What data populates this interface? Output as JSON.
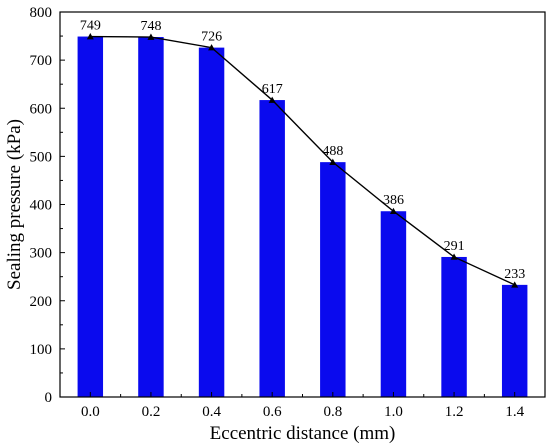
{
  "chart_data": {
    "type": "bar",
    "title": "",
    "xlabel": "Eccentric distance (mm)",
    "ylabel": "Sealing pressure (kPa)",
    "categories": [
      "0.0",
      "0.2",
      "0.4",
      "0.6",
      "0.8",
      "1.0",
      "1.2",
      "1.4"
    ],
    "values": [
      749,
      748,
      726,
      617,
      488,
      386,
      291,
      233
    ],
    "data_labels": [
      "749",
      "748",
      "726",
      "617",
      "488",
      "386",
      "291",
      "233"
    ],
    "ylim": [
      0,
      800
    ],
    "yticks": [
      "0",
      "100",
      "200",
      "300",
      "400",
      "500",
      "600",
      "700",
      "800"
    ],
    "overlay": "line with triangle markers connecting bar tops",
    "grid": false,
    "legend": "none",
    "colors": {
      "bar": "#0a0aee",
      "line": "#000000"
    }
  }
}
